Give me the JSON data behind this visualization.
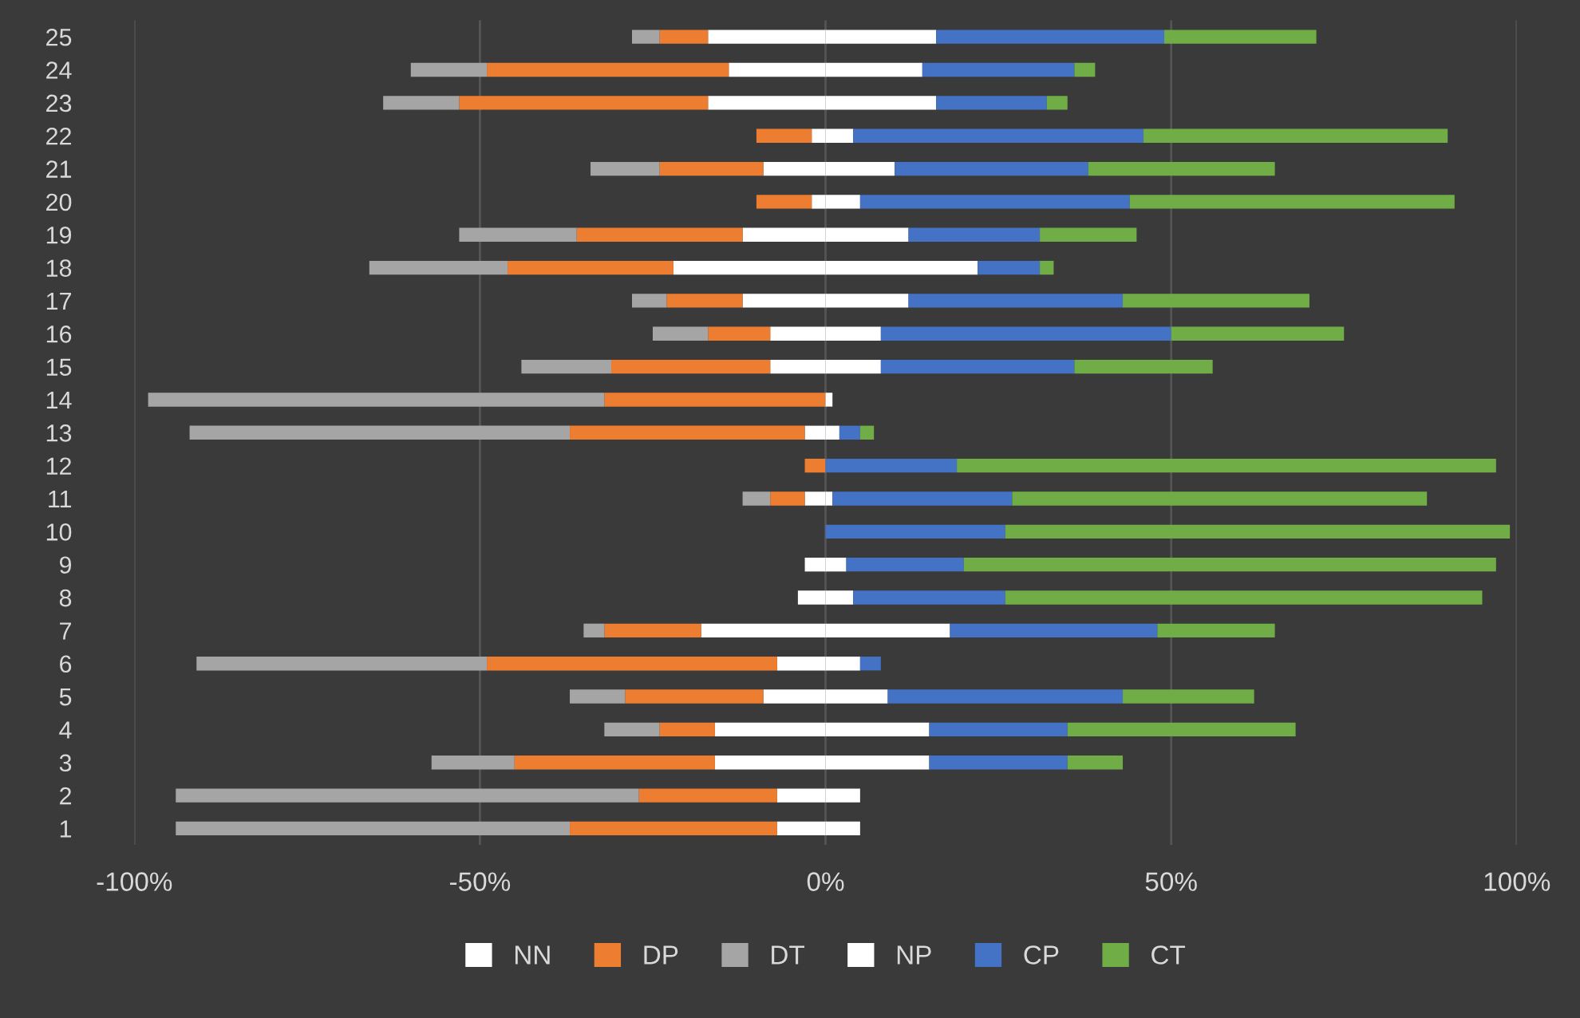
{
  "chart_data": {
    "type": "bar",
    "orientation": "horizontal",
    "stacked": true,
    "categories": [
      "25",
      "24",
      "23",
      "22",
      "21",
      "20",
      "19",
      "18",
      "17",
      "16",
      "15",
      "14",
      "13",
      "12",
      "11",
      "10",
      "9",
      "8",
      "7",
      "6",
      "5",
      "4",
      "3",
      "2",
      "1"
    ],
    "series": [
      {
        "name": "NN",
        "color": "#ffffff",
        "values": [
          -17,
          -14,
          -17,
          -2,
          -9,
          -2,
          -12,
          -22,
          -12,
          -8,
          -8,
          0,
          -3,
          0,
          -3,
          0,
          -3,
          -4,
          -18,
          -7,
          -9,
          -16,
          -16,
          -7,
          -7
        ]
      },
      {
        "name": "DP",
        "color": "#ed7d31",
        "values": [
          -7,
          -35,
          -36,
          -8,
          -15,
          -8,
          -24,
          -24,
          -11,
          -9,
          -23,
          -32,
          -34,
          -3,
          -5,
          0,
          0,
          0,
          -14,
          -42,
          -20,
          -8,
          -29,
          -20,
          -30
        ]
      },
      {
        "name": "DT",
        "color": "#a5a5a5",
        "values": [
          -4,
          -11,
          -11,
          0,
          -10,
          0,
          -17,
          -20,
          -5,
          -8,
          -13,
          -66,
          -55,
          0,
          -4,
          0,
          0,
          0,
          -3,
          -42,
          -8,
          -8,
          -12,
          -67,
          -57
        ]
      },
      {
        "name": "NP",
        "color": "#ffffff",
        "values": [
          16,
          14,
          16,
          4,
          10,
          5,
          12,
          22,
          12,
          8,
          8,
          1,
          2,
          0,
          1,
          0,
          3,
          4,
          18,
          5,
          9,
          15,
          15,
          5,
          5
        ]
      },
      {
        "name": "CP",
        "color": "#4472c4",
        "values": [
          33,
          22,
          16,
          42,
          28,
          39,
          19,
          9,
          31,
          42,
          28,
          0,
          3,
          19,
          26,
          26,
          17,
          22,
          30,
          3,
          34,
          20,
          20,
          0,
          0
        ]
      },
      {
        "name": "CT",
        "color": "#70ad47",
        "values": [
          22,
          3,
          3,
          44,
          27,
          47,
          14,
          2,
          27,
          25,
          20,
          0,
          2,
          78,
          60,
          73,
          77,
          69,
          17,
          0,
          19,
          33,
          8,
          0,
          0
        ]
      }
    ],
    "xlim": [
      -100,
      100
    ],
    "xticks": [
      {
        "value": -100,
        "label": "-100%"
      },
      {
        "value": -50,
        "label": "-50%"
      },
      {
        "value": 0,
        "label": "0%"
      },
      {
        "value": 50,
        "label": "50%"
      },
      {
        "value": 100,
        "label": "100%"
      }
    ],
    "grid": "x",
    "legend": "bottom"
  }
}
